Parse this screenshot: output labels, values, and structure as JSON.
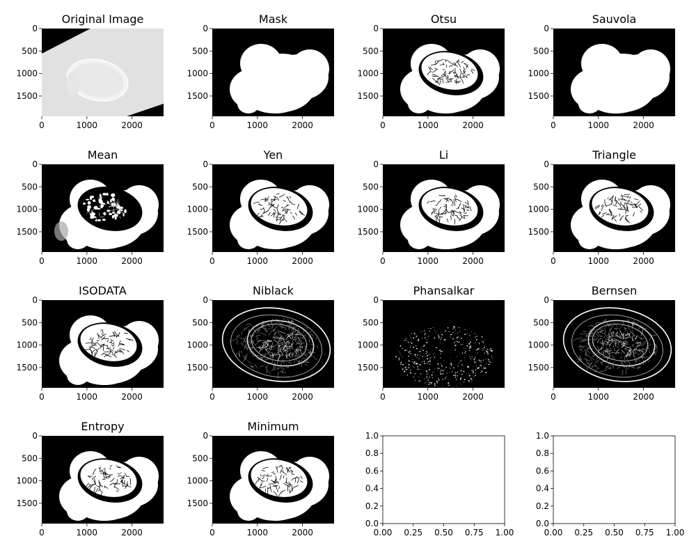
{
  "chart_data": [
    {
      "type": "image",
      "title": "Original Image",
      "image_kind": "original",
      "x_ticks": [
        0,
        1000,
        2000
      ],
      "y_ticks": [
        0,
        500,
        1000,
        1500
      ],
      "xlim": [
        0,
        2700
      ],
      "ylim": [
        1950,
        0
      ]
    },
    {
      "type": "image",
      "title": "Mask",
      "image_kind": "mask",
      "x_ticks": [
        0,
        1000,
        2000
      ],
      "y_ticks": [
        0,
        500,
        1000,
        1500
      ],
      "xlim": [
        0,
        2700
      ],
      "ylim": [
        1950,
        0
      ]
    },
    {
      "type": "image",
      "title": "Otsu",
      "image_kind": "threshold",
      "x_ticks": [
        0,
        1000,
        2000
      ],
      "y_ticks": [
        0,
        500,
        1000,
        1500
      ],
      "xlim": [
        0,
        2700
      ],
      "ylim": [
        1950,
        0
      ]
    },
    {
      "type": "image",
      "title": "Sauvola",
      "image_kind": "mask",
      "x_ticks": [
        0,
        1000,
        2000
      ],
      "y_ticks": [
        0,
        500,
        1000,
        1500
      ],
      "xlim": [
        0,
        2700
      ],
      "ylim": [
        1950,
        0
      ]
    },
    {
      "type": "image",
      "title": "Mean",
      "image_kind": "mean",
      "x_ticks": [
        0,
        1000,
        2000
      ],
      "y_ticks": [
        0,
        500,
        1000,
        1500
      ],
      "xlim": [
        0,
        2700
      ],
      "ylim": [
        1950,
        0
      ]
    },
    {
      "type": "image",
      "title": "Yen",
      "image_kind": "threshold",
      "x_ticks": [
        0,
        1000,
        2000
      ],
      "y_ticks": [
        0,
        500,
        1000,
        1500
      ],
      "xlim": [
        0,
        2700
      ],
      "ylim": [
        1950,
        0
      ]
    },
    {
      "type": "image",
      "title": "Li",
      "image_kind": "threshold",
      "x_ticks": [
        0,
        1000,
        2000
      ],
      "y_ticks": [
        0,
        500,
        1000,
        1500
      ],
      "xlim": [
        0,
        2700
      ],
      "ylim": [
        1950,
        0
      ]
    },
    {
      "type": "image",
      "title": "Triangle",
      "image_kind": "threshold",
      "x_ticks": [
        0,
        1000,
        2000
      ],
      "y_ticks": [
        0,
        500,
        1000,
        1500
      ],
      "xlim": [
        0,
        2700
      ],
      "ylim": [
        1950,
        0
      ]
    },
    {
      "type": "image",
      "title": "ISODATA",
      "image_kind": "threshold",
      "x_ticks": [
        0,
        1000,
        2000
      ],
      "y_ticks": [
        0,
        500,
        1000,
        1500
      ],
      "xlim": [
        0,
        2700
      ],
      "ylim": [
        1950,
        0
      ]
    },
    {
      "type": "image",
      "title": "Niblack",
      "image_kind": "edges",
      "x_ticks": [
        0,
        1000,
        2000
      ],
      "y_ticks": [
        0,
        500,
        1000,
        1500
      ],
      "xlim": [
        0,
        2700
      ],
      "ylim": [
        1950,
        0
      ]
    },
    {
      "type": "image",
      "title": "Phansalkar",
      "image_kind": "speckle",
      "x_ticks": [
        0,
        1000,
        2000
      ],
      "y_ticks": [
        0,
        500,
        1000,
        1500
      ],
      "xlim": [
        0,
        2700
      ],
      "ylim": [
        1950,
        0
      ]
    },
    {
      "type": "image",
      "title": "Bernsen",
      "image_kind": "edges",
      "x_ticks": [
        0,
        1000,
        2000
      ],
      "y_ticks": [
        0,
        500,
        1000,
        1500
      ],
      "xlim": [
        0,
        2700
      ],
      "ylim": [
        1950,
        0
      ]
    },
    {
      "type": "image",
      "title": "Entropy",
      "image_kind": "threshold",
      "x_ticks": [
        0,
        1000,
        2000
      ],
      "y_ticks": [
        0,
        500,
        1000,
        1500
      ],
      "xlim": [
        0,
        2700
      ],
      "ylim": [
        1950,
        0
      ]
    },
    {
      "type": "image",
      "title": "Minimum",
      "image_kind": "threshold",
      "x_ticks": [
        0,
        1000,
        2000
      ],
      "y_ticks": [
        0,
        500,
        1000,
        1500
      ],
      "xlim": [
        0,
        2700
      ],
      "ylim": [
        1950,
        0
      ]
    },
    {
      "type": "empty",
      "title": "",
      "x_ticks": [
        "0.00",
        "0.25",
        "0.50",
        "0.75",
        "1.00"
      ],
      "y_ticks": [
        "0.0",
        "0.2",
        "0.4",
        "0.6",
        "0.8",
        "1.0"
      ],
      "xlim": [
        0,
        1
      ],
      "ylim": [
        0,
        1
      ]
    },
    {
      "type": "empty",
      "title": "",
      "x_ticks": [
        "0.00",
        "0.25",
        "0.50",
        "0.75",
        "1.00"
      ],
      "y_ticks": [
        "0.0",
        "0.2",
        "0.4",
        "0.6",
        "0.8",
        "1.0"
      ],
      "xlim": [
        0,
        1
      ],
      "ylim": [
        0,
        1
      ]
    }
  ],
  "colors": {
    "background": "#000000",
    "foreground": "#ffffff",
    "original_light": "#e1e1e1",
    "original_tissue": "#ececec",
    "mean_gray": "#a8a8a8"
  }
}
